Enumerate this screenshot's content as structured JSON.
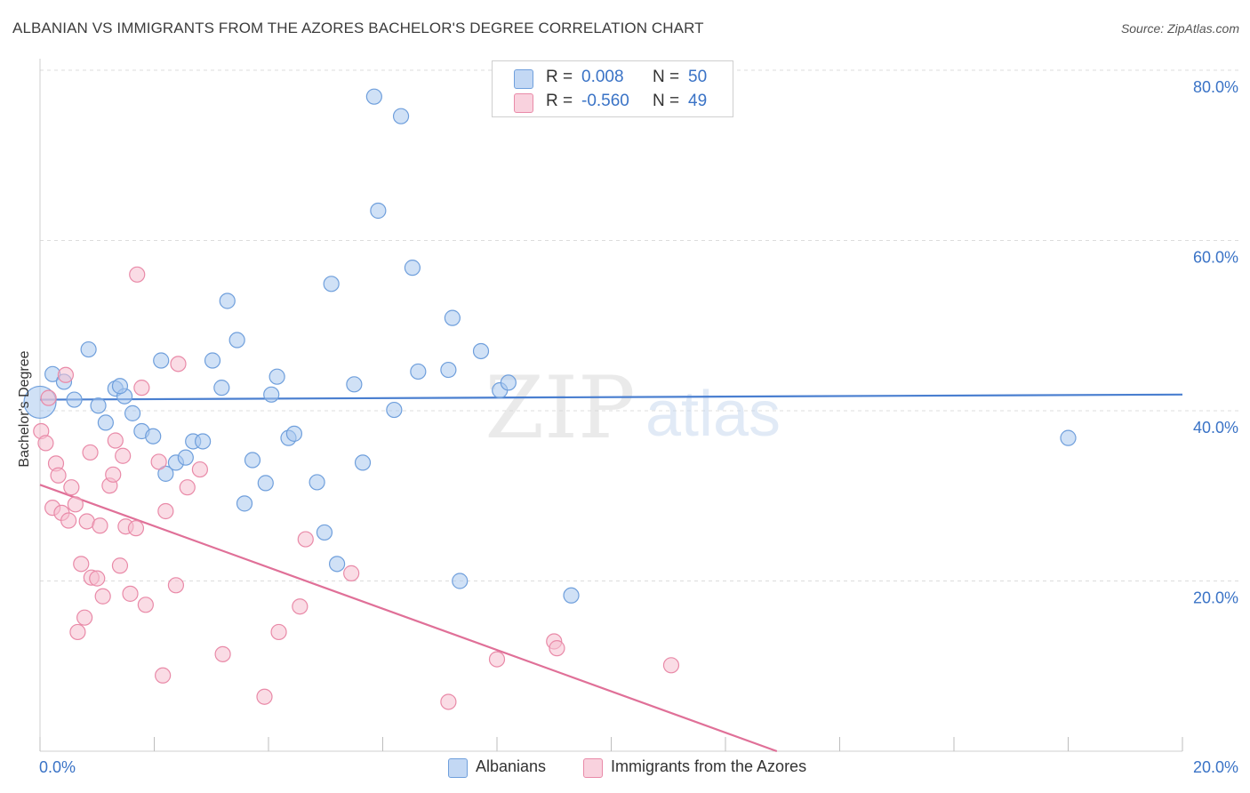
{
  "header": {
    "title": "ALBANIAN VS IMMIGRANTS FROM THE AZORES BACHELOR'S DEGREE CORRELATION CHART",
    "source": "Source: ZipAtlas.com"
  },
  "legend": {
    "rows": [
      {
        "r_label": "R =",
        "r_value": "0.008",
        "n_label": "N =",
        "n_value": "50",
        "color": "#a9c8ef",
        "stroke": "#6f9fdc"
      },
      {
        "r_label": "R =",
        "r_value": "-0.560",
        "n_label": "N =",
        "n_value": "49",
        "color": "#f6bfd0",
        "stroke": "#e98aa8"
      }
    ]
  },
  "bottom_legend": {
    "items": [
      {
        "label": "Albanians",
        "color": "#a9c8ef",
        "stroke": "#6f9fdc"
      },
      {
        "label": "Immigrants from the Azores",
        "color": "#f6bfd0",
        "stroke": "#e98aa8"
      }
    ]
  },
  "watermark": {
    "zip": "ZIP",
    "atlas": "atlas"
  },
  "chart_data": {
    "type": "scatter",
    "title": "ALBANIAN VS IMMIGRANTS FROM THE AZORES BACHELOR'S DEGREE CORRELATION CHART",
    "xlabel": "",
    "ylabel": "Bachelor's Degree",
    "xlim": [
      0,
      20
    ],
    "ylim": [
      0,
      80
    ],
    "x_tick_labels": [
      "0.0%",
      "20.0%"
    ],
    "y_ticks": [
      20,
      40,
      60,
      80
    ],
    "y_tick_labels": [
      "20.0%",
      "40.0%",
      "60.0%",
      "80.0%"
    ],
    "grid": true,
    "legend_placement": "top-center",
    "colors": {
      "albanians": "#4a7fd0",
      "azores": "#e07098",
      "tick_text": "#3a73c6"
    },
    "series": [
      {
        "name": "Albanians",
        "trend": {
          "x": [
            0,
            20
          ],
          "y": [
            41.3,
            41.9
          ]
        },
        "points": [
          {
            "x": 0.0,
            "y": 41.0,
            "size": "large"
          },
          {
            "x": 0.22,
            "y": 44.3
          },
          {
            "x": 0.42,
            "y": 43.4
          },
          {
            "x": 0.85,
            "y": 47.2
          },
          {
            "x": 1.02,
            "y": 40.6
          },
          {
            "x": 1.15,
            "y": 38.6
          },
          {
            "x": 1.32,
            "y": 42.6
          },
          {
            "x": 1.48,
            "y": 41.7
          },
          {
            "x": 1.62,
            "y": 39.7
          },
          {
            "x": 1.78,
            "y": 37.6
          },
          {
            "x": 1.98,
            "y": 37.0
          },
          {
            "x": 2.12,
            "y": 45.9
          },
          {
            "x": 2.2,
            "y": 32.6
          },
          {
            "x": 2.38,
            "y": 33.9
          },
          {
            "x": 2.55,
            "y": 34.5
          },
          {
            "x": 2.68,
            "y": 36.4
          },
          {
            "x": 2.85,
            "y": 36.4
          },
          {
            "x": 3.02,
            "y": 45.9
          },
          {
            "x": 3.18,
            "y": 42.7
          },
          {
            "x": 3.28,
            "y": 52.9
          },
          {
            "x": 3.45,
            "y": 48.3
          },
          {
            "x": 3.58,
            "y": 29.1
          },
          {
            "x": 3.72,
            "y": 34.2
          },
          {
            "x": 3.95,
            "y": 31.5
          },
          {
            "x": 4.05,
            "y": 41.9
          },
          {
            "x": 4.15,
            "y": 44.0
          },
          {
            "x": 4.35,
            "y": 36.8
          },
          {
            "x": 4.45,
            "y": 37.3
          },
          {
            "x": 4.85,
            "y": 31.6
          },
          {
            "x": 4.98,
            "y": 25.7
          },
          {
            "x": 5.1,
            "y": 54.9
          },
          {
            "x": 5.2,
            "y": 22.0
          },
          {
            "x": 5.5,
            "y": 43.1
          },
          {
            "x": 5.65,
            "y": 33.9
          },
          {
            "x": 5.85,
            "y": 76.9
          },
          {
            "x": 5.92,
            "y": 63.5
          },
          {
            "x": 6.2,
            "y": 40.1
          },
          {
            "x": 6.32,
            "y": 74.6
          },
          {
            "x": 6.52,
            "y": 56.8
          },
          {
            "x": 6.62,
            "y": 44.6
          },
          {
            "x": 7.15,
            "y": 44.8
          },
          {
            "x": 7.22,
            "y": 50.9
          },
          {
            "x": 7.35,
            "y": 20.0
          },
          {
            "x": 7.72,
            "y": 47.0
          },
          {
            "x": 8.05,
            "y": 42.4
          },
          {
            "x": 8.2,
            "y": 43.3
          },
          {
            "x": 9.3,
            "y": 18.3
          },
          {
            "x": 18.0,
            "y": 36.8
          },
          {
            "x": 0.6,
            "y": 41.3
          },
          {
            "x": 1.4,
            "y": 42.9
          }
        ]
      },
      {
        "name": "Immigrants from the Azores",
        "trend": {
          "x": [
            0,
            12.9
          ],
          "y": [
            31.3,
            0
          ]
        },
        "points": [
          {
            "x": 0.02,
            "y": 37.6
          },
          {
            "x": 0.1,
            "y": 36.2
          },
          {
            "x": 0.15,
            "y": 41.5
          },
          {
            "x": 0.22,
            "y": 28.6
          },
          {
            "x": 0.28,
            "y": 33.8
          },
          {
            "x": 0.32,
            "y": 32.4
          },
          {
            "x": 0.38,
            "y": 28.0
          },
          {
            "x": 0.45,
            "y": 44.2
          },
          {
            "x": 0.5,
            "y": 27.1
          },
          {
            "x": 0.55,
            "y": 31.0
          },
          {
            "x": 0.62,
            "y": 29.0
          },
          {
            "x": 0.66,
            "y": 14.0
          },
          {
            "x": 0.72,
            "y": 22.0
          },
          {
            "x": 0.78,
            "y": 15.7
          },
          {
            "x": 0.82,
            "y": 27.0
          },
          {
            "x": 0.88,
            "y": 35.1
          },
          {
            "x": 0.9,
            "y": 20.4
          },
          {
            "x": 1.0,
            "y": 20.3
          },
          {
            "x": 1.05,
            "y": 26.5
          },
          {
            "x": 1.1,
            "y": 18.2
          },
          {
            "x": 1.22,
            "y": 31.2
          },
          {
            "x": 1.28,
            "y": 32.5
          },
          {
            "x": 1.32,
            "y": 36.5
          },
          {
            "x": 1.4,
            "y": 21.8
          },
          {
            "x": 1.45,
            "y": 34.7
          },
          {
            "x": 1.5,
            "y": 26.4
          },
          {
            "x": 1.58,
            "y": 18.5
          },
          {
            "x": 1.68,
            "y": 26.2
          },
          {
            "x": 1.7,
            "y": 56.0
          },
          {
            "x": 1.78,
            "y": 42.7
          },
          {
            "x": 1.85,
            "y": 17.2
          },
          {
            "x": 2.08,
            "y": 34.0
          },
          {
            "x": 2.15,
            "y": 8.9
          },
          {
            "x": 2.2,
            "y": 28.2
          },
          {
            "x": 2.38,
            "y": 19.5
          },
          {
            "x": 2.42,
            "y": 45.5
          },
          {
            "x": 2.58,
            "y": 31.0
          },
          {
            "x": 2.8,
            "y": 33.1
          },
          {
            "x": 3.2,
            "y": 11.4
          },
          {
            "x": 3.93,
            "y": 6.4
          },
          {
            "x": 4.18,
            "y": 14.0
          },
          {
            "x": 4.55,
            "y": 17.0
          },
          {
            "x": 4.65,
            "y": 24.9
          },
          {
            "x": 5.45,
            "y": 20.9
          },
          {
            "x": 7.15,
            "y": 5.8
          },
          {
            "x": 8.0,
            "y": 10.8
          },
          {
            "x": 9.0,
            "y": 12.9
          },
          {
            "x": 9.05,
            "y": 12.1
          },
          {
            "x": 11.05,
            "y": 10.1
          }
        ]
      }
    ]
  }
}
